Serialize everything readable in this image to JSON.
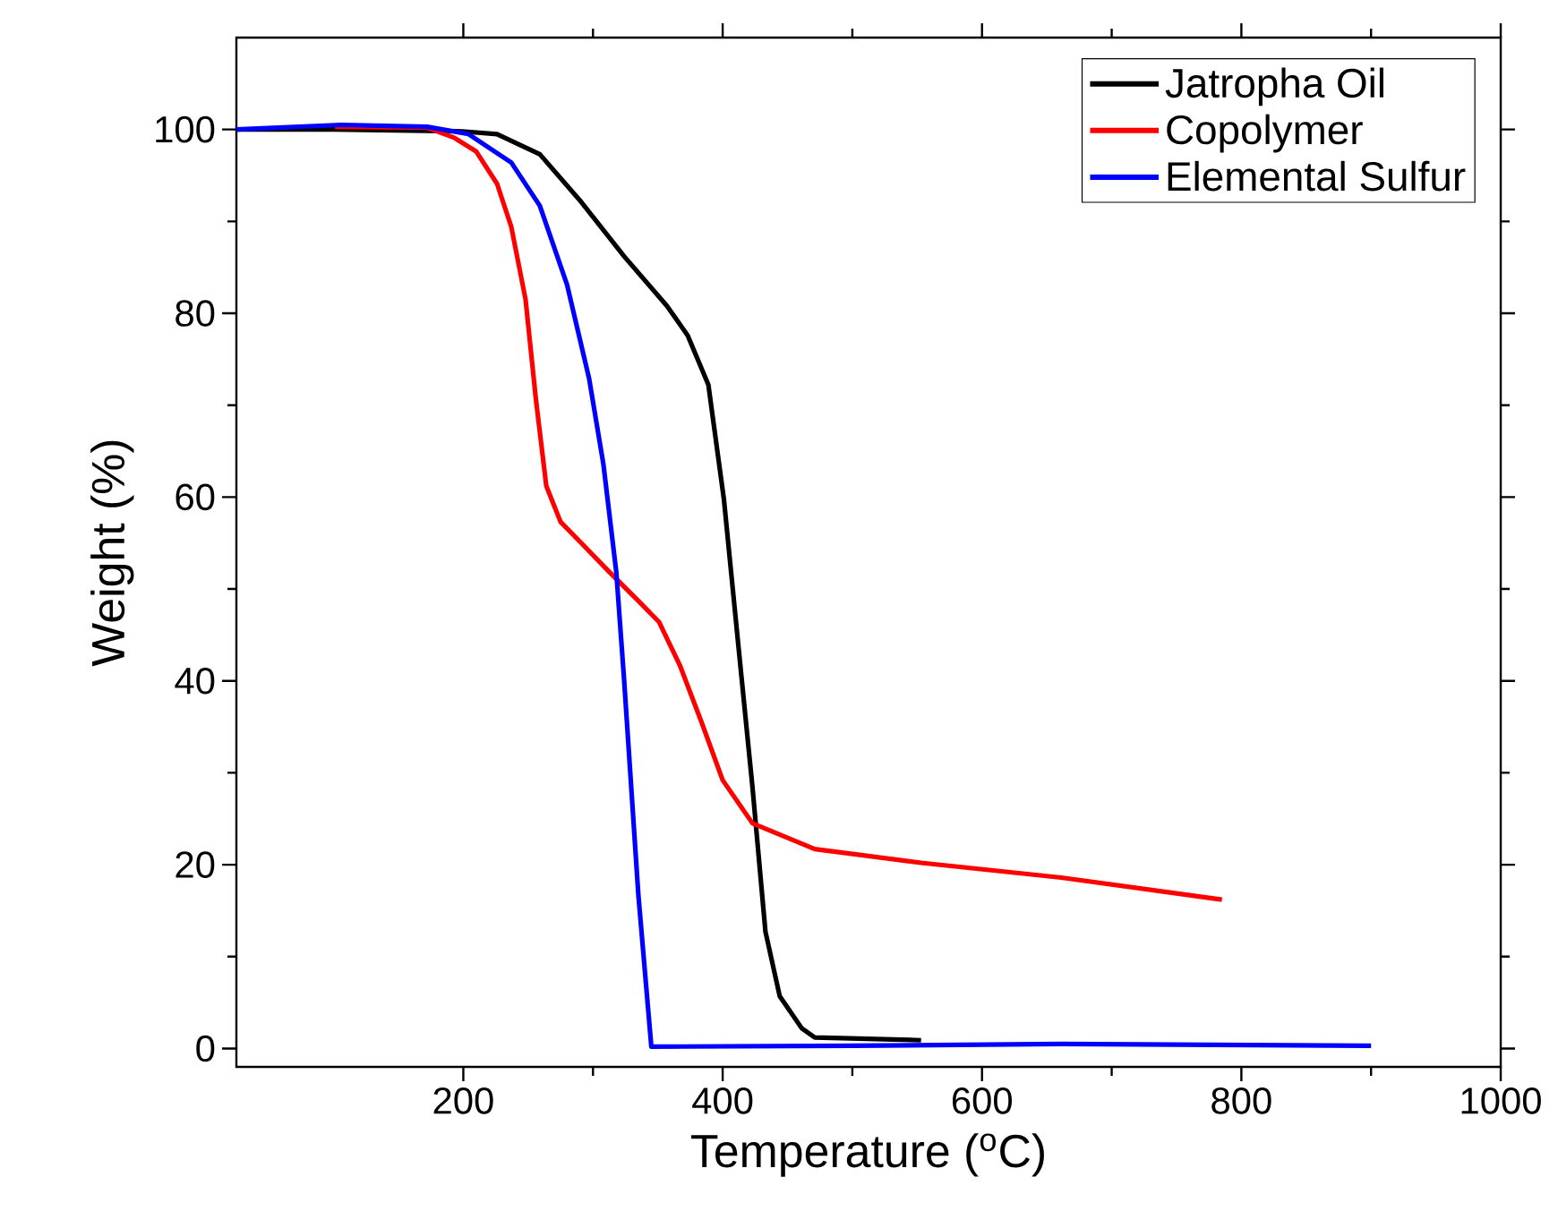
{
  "chart_data": {
    "type": "line",
    "xlabel": "Temperature ($^{o}$C)",
    "ylabel": "Weight (%)",
    "xlim": [
      25,
      1000
    ],
    "ylim": [
      -2,
      110
    ],
    "xticks": [
      200,
      400,
      600,
      800,
      1000
    ],
    "yticks": [
      0,
      20,
      40,
      60,
      80,
      100
    ],
    "grid": false,
    "legend": "top right",
    "marker": "none",
    "line_style": "solid",
    "series": [
      {
        "name": "Jatropha Oil",
        "color": "#000000",
        "x": [
          25,
          100,
          199,
          226,
          259,
          291,
          324,
          357,
          373,
          389,
          401,
          412,
          423,
          433,
          444,
          461,
          471,
          553
        ],
        "values": [
          100,
          100,
          99.8,
          99.5,
          97.3,
          92.1,
          86.2,
          80.8,
          77.6,
          72.2,
          59.7,
          44,
          28.4,
          12.7,
          5.7,
          2.2,
          1.2,
          0.9
        ]
      },
      {
        "name": "Copolymer",
        "color": "#ff0000",
        "x": [
          101,
          172,
          193,
          210,
          226,
          237,
          248,
          256,
          264,
          275,
          291,
          313,
          335,
          351,
          367,
          384,
          400,
          423,
          471,
          553,
          661,
          785
        ],
        "values": [
          100.3,
          100.2,
          99.1,
          97.6,
          94.1,
          89.4,
          81.5,
          70.6,
          61.2,
          57.3,
          55,
          51.8,
          48.7,
          46.4,
          41.7,
          35.4,
          29.2,
          24.5,
          21.7,
          20.2,
          18.6,
          16.2
        ]
      },
      {
        "name": "Elemental Sulfur",
        "color": "#0000ff",
        "x": [
          25,
          106,
          172,
          204,
          237,
          259,
          280,
          297,
          308,
          318,
          324,
          335,
          345,
          500,
          661,
          900
        ],
        "values": [
          100,
          100.5,
          100.3,
          99.5,
          96.4,
          91.7,
          83.1,
          72.9,
          63.6,
          51.8,
          40.1,
          16.7,
          0.2,
          0.3,
          0.5,
          0.3
        ]
      }
    ]
  }
}
